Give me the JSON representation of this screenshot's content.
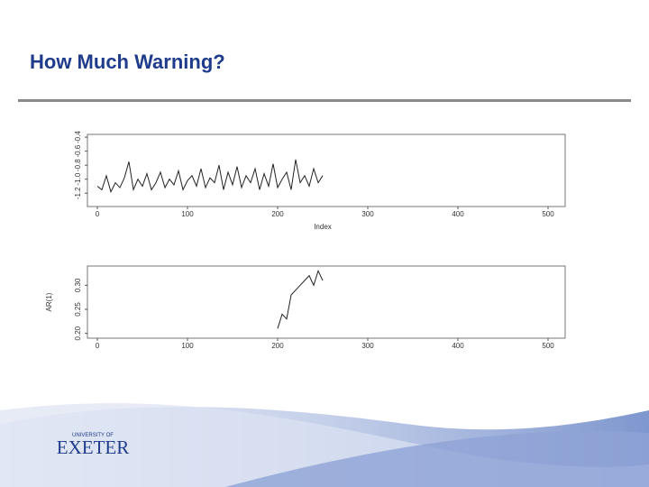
{
  "slide": {
    "title": "How Much Warning?",
    "logo_top": "UNIVERSITY OF",
    "logo_main": "EXETER"
  },
  "chart_data": [
    {
      "type": "line",
      "xlabel": "Index",
      "x": [
        0,
        5,
        10,
        15,
        20,
        25,
        30,
        35,
        40,
        45,
        50,
        55,
        60,
        65,
        70,
        75,
        80,
        85,
        90,
        95,
        100,
        105,
        110,
        115,
        120,
        125,
        130,
        135,
        140,
        145,
        150,
        155,
        160,
        165,
        170,
        175,
        180,
        185,
        190,
        195,
        200,
        205,
        210,
        215,
        220,
        225,
        230,
        235,
        240,
        245,
        250
      ],
      "series": [
        {
          "color": "#222222",
          "values": [
            -1.1,
            -1.15,
            -0.95,
            -1.18,
            -1.05,
            -1.12,
            -0.98,
            -0.75,
            -1.15,
            -1.0,
            -1.1,
            -0.92,
            -1.15,
            -1.05,
            -0.9,
            -1.12,
            -1.0,
            -1.08,
            -0.88,
            -1.15,
            -1.02,
            -0.95,
            -1.1,
            -0.85,
            -1.12,
            -0.98,
            -1.05,
            -0.8,
            -1.15,
            -0.9,
            -1.08,
            -0.82,
            -1.12,
            -0.95,
            -1.05,
            -0.85,
            -1.15,
            -0.92,
            -1.1,
            -0.78,
            -1.12,
            -1.0,
            -0.9,
            -1.15,
            -0.72,
            -1.05,
            -0.95,
            -1.1,
            -0.85,
            -1.05,
            -0.95
          ]
        }
      ],
      "xlim": [
        -11,
        519
      ],
      "xticks": [
        0,
        100,
        200,
        300,
        400,
        500
      ],
      "ylim": [
        -1.39,
        -0.36
      ],
      "yticks": [
        {
          "value": -1.2,
          "label": "-1.2"
        },
        {
          "value": -1.0,
          "label": "-1.0"
        },
        {
          "value": -0.8,
          "label": "-0.8"
        },
        {
          "value": -0.6,
          "label": "-0.6"
        },
        {
          "value": -0.4,
          "label": "-0.4"
        }
      ]
    },
    {
      "type": "line",
      "ylabel": "AR(1)",
      "x": [
        200,
        205,
        210,
        215,
        220,
        225,
        230,
        235,
        240,
        245,
        250
      ],
      "series": [
        {
          "color": "#222222",
          "values": [
            0.21,
            0.24,
            0.23,
            0.28,
            0.29,
            0.3,
            0.31,
            0.32,
            0.3,
            0.33,
            0.31
          ]
        }
      ],
      "xlim": [
        -11,
        519
      ],
      "xticks": [
        0,
        100,
        200,
        300,
        400,
        500
      ],
      "ylim": [
        0.19,
        0.34
      ],
      "yticks": [
        {
          "value": 0.2,
          "label": "0.20"
        },
        {
          "value": 0.25,
          "label": "0.25"
        },
        {
          "value": 0.3,
          "label": "0.30"
        }
      ]
    }
  ]
}
